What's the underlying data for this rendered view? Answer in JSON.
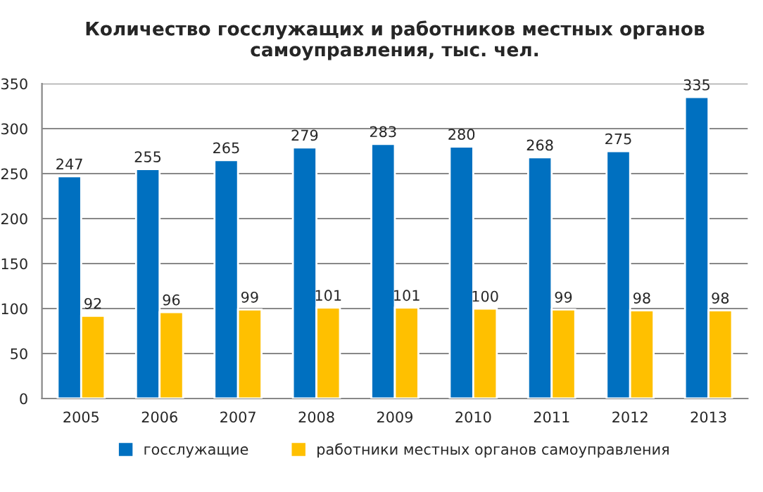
{
  "chart_data": {
    "type": "bar",
    "title": "Количество госслужащих и работников местных органов\nсамоуправления, тыс. чел.",
    "categories": [
      "2005",
      "2006",
      "2007",
      "2008",
      "2009",
      "2010",
      "2011",
      "2012",
      "2013"
    ],
    "series": [
      {
        "name": "госслужащие",
        "color": "#0070c0",
        "values": [
          247,
          255,
          265,
          279,
          283,
          280,
          268,
          275,
          335
        ]
      },
      {
        "name": "работники местных органов самоуправления",
        "color": "#ffc000",
        "values": [
          92,
          96,
          99,
          101,
          101,
          100,
          99,
          98,
          98
        ]
      }
    ],
    "ylim": [
      0,
      350
    ],
    "yticks": [
      0,
      50,
      100,
      150,
      200,
      250,
      300,
      350
    ],
    "grid": "y",
    "legend": "bottom",
    "data_labels": true
  }
}
